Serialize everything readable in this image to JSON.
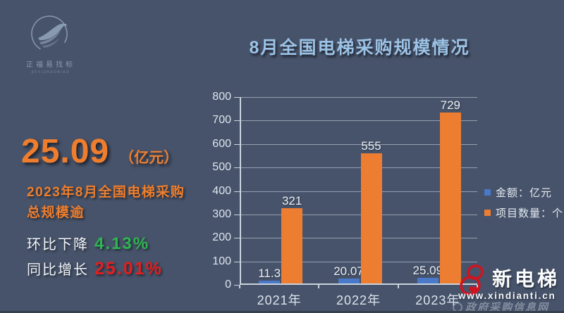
{
  "page": {
    "background": "#47536a"
  },
  "corp_logo": {
    "name": "正福易找标",
    "subtext": "ZFYIZHAOBIAO"
  },
  "title": "8月全国电梯采购规模情况",
  "left_panel": {
    "headline_value": "25.09",
    "headline_unit": "（亿元）",
    "description_line1": "2023年8月全国电梯采购",
    "description_line2": "总规模逾",
    "mom_label": "环比下降",
    "mom_value": "4.13%",
    "yoy_label": "同比增长",
    "yoy_value": "25.01%"
  },
  "chart_data": {
    "type": "bar",
    "title": "8月全国电梯采购规模情况",
    "categories": [
      "2021年",
      "2022年",
      "2023年"
    ],
    "series": [
      {
        "name": "金额：亿元",
        "color": "#4a79c9",
        "values": [
          11.3,
          20.07,
          25.09
        ]
      },
      {
        "name": "项目数量：个",
        "color": "#ed7d31",
        "values": [
          321,
          555,
          729
        ]
      }
    ],
    "xlabel": "",
    "ylabel": "",
    "ylim": [
      0,
      800
    ],
    "ytick_step": 100,
    "grid": true,
    "legend_position": "right"
  },
  "branding": {
    "site_name": "新电梯",
    "site_url": "www.xindianti.cn",
    "watermark": "政府采购信息网"
  },
  "colors": {
    "accent_orange": "#ee7e2e",
    "bar_blue": "#4a79c9",
    "bar_orange": "#ed7d31",
    "positive_green": "#2fb551",
    "negative_red": "#e31f1f",
    "title_blue": "#9cc2e5"
  }
}
